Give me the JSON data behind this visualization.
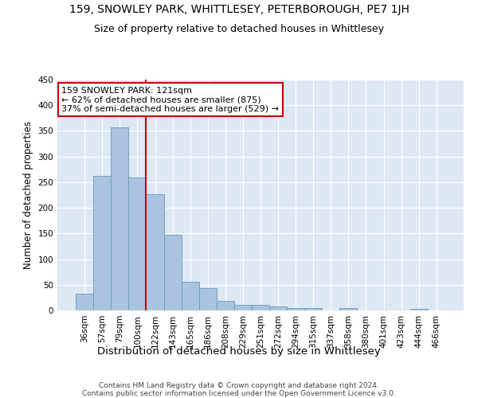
{
  "title": "159, SNOWLEY PARK, WHITTLESEY, PETERBOROUGH, PE7 1JH",
  "subtitle": "Size of property relative to detached houses in Whittlesey",
  "xlabel": "Distribution of detached houses by size in Whittlesey",
  "ylabel": "Number of detached properties",
  "categories": [
    "36sqm",
    "57sqm",
    "79sqm",
    "100sqm",
    "122sqm",
    "143sqm",
    "165sqm",
    "186sqm",
    "208sqm",
    "229sqm",
    "251sqm",
    "272sqm",
    "294sqm",
    "315sqm",
    "337sqm",
    "358sqm",
    "380sqm",
    "401sqm",
    "423sqm",
    "444sqm",
    "466sqm"
  ],
  "values": [
    32,
    262,
    357,
    259,
    226,
    147,
    56,
    43,
    19,
    11,
    11,
    7,
    5,
    4,
    0,
    4,
    0,
    0,
    0,
    3,
    0
  ],
  "bar_color": "#aac4df",
  "bar_edge_color": "#6699bb",
  "vline_color": "#cc0000",
  "vline_index": 4,
  "annotation_text": "159 SNOWLEY PARK: 121sqm\n← 62% of detached houses are smaller (875)\n37% of semi-detached houses are larger (529) →",
  "annotation_box_color": "#ffffff",
  "annotation_box_edge": "#cc0000",
  "footer": "Contains HM Land Registry data © Crown copyright and database right 2024.\nContains public sector information licensed under the Open Government Licence v3.0.",
  "bg_color": "#dde8f4",
  "ylim": [
    0,
    450
  ],
  "title_fontsize": 10,
  "subtitle_fontsize": 9,
  "xlabel_fontsize": 9.5,
  "ylabel_fontsize": 8.5,
  "tick_fontsize": 7.5,
  "footer_fontsize": 6.5,
  "annotation_fontsize": 8
}
